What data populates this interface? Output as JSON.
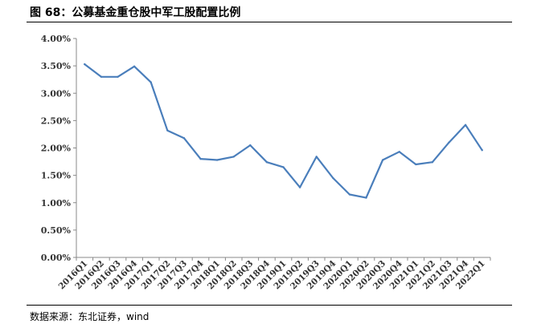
{
  "figure": {
    "title": "图 68：公募基金重仓股中军工股配置比例",
    "source": "数据来源：东北证券，wind"
  },
  "chart_data": {
    "type": "line",
    "title": "",
    "xlabel": "",
    "ylabel": "",
    "ylim": [
      0,
      4.0
    ],
    "y_tick_labels": [
      "0.00%",
      "0.50%",
      "1.00%",
      "1.50%",
      "2.00%",
      "2.50%",
      "3.00%",
      "3.50%",
      "4.00%"
    ],
    "y_tick_values": [
      0,
      0.5,
      1.0,
      1.5,
      2.0,
      2.5,
      3.0,
      3.5,
      4.0
    ],
    "grid": false,
    "legend": "none",
    "line_color": "#4a7ebb",
    "categories": [
      "2016Q1",
      "2016Q2",
      "2016Q3",
      "2016Q4",
      "2017Q1",
      "2017Q2",
      "2017Q3",
      "2017Q4",
      "2018Q1",
      "2018Q2",
      "2018Q3",
      "2018Q4",
      "2019Q1",
      "2019Q2",
      "2019Q3",
      "2019Q4",
      "2020Q1",
      "2020Q2",
      "2020Q3",
      "2020Q4",
      "2021Q1",
      "2021Q2",
      "2021Q3",
      "2021Q4",
      "2022Q1"
    ],
    "series": [
      {
        "values": [
          3.53,
          3.3,
          3.3,
          3.49,
          3.2,
          2.32,
          2.18,
          1.8,
          1.78,
          1.84,
          2.05,
          1.74,
          1.65,
          1.28,
          1.84,
          1.45,
          1.15,
          1.09,
          1.78,
          1.93,
          1.7,
          1.74,
          2.1,
          2.42,
          1.96
        ]
      }
    ]
  }
}
